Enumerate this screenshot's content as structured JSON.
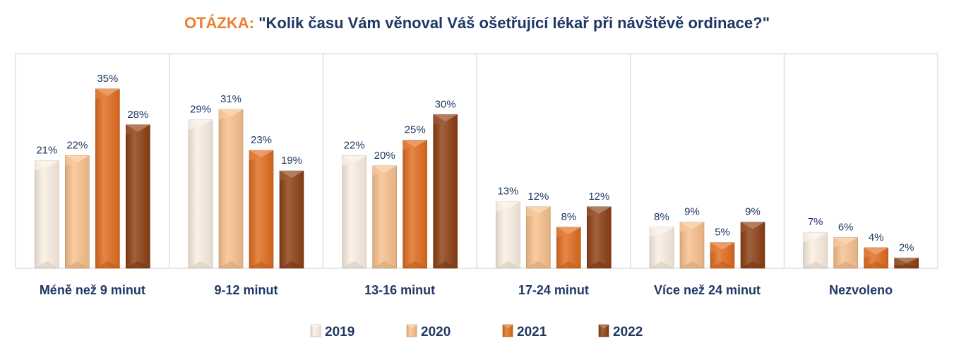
{
  "title": {
    "prefix": "OTÁZKA:",
    "text": "\"Kolik času Vám věnoval Váš ošetřující lékař při návštěvě ordinace?\""
  },
  "chart_data": {
    "type": "bar",
    "categories": [
      "Méně než 9 minut",
      "9-12 minut",
      "13-16 minut",
      "17-24 minut",
      "Více než 24 minut",
      "Nezvoleno"
    ],
    "series": [
      {
        "name": "2019",
        "values": [
          21,
          29,
          22,
          13,
          8,
          7
        ],
        "labels": [
          "21%",
          "29%",
          "22%",
          "13%",
          "8%",
          "7%"
        ],
        "color": "#fbeee2"
      },
      {
        "name": "2020",
        "values": [
          22,
          31,
          20,
          12,
          9,
          6
        ],
        "labels": [
          "22%",
          "31%",
          "20%",
          "12%",
          "9%",
          "6%"
        ],
        "color": "#f8c08c"
      },
      {
        "name": "2021",
        "values": [
          35,
          23,
          25,
          8,
          5,
          4
        ],
        "labels": [
          "35%",
          "23%",
          "25%",
          "8%",
          "5%",
          "4%"
        ],
        "color": "#e06b1d"
      },
      {
        "name": "2022",
        "values": [
          28,
          19,
          30,
          12,
          9,
          2
        ],
        "labels": [
          "28%",
          "19%",
          "30%",
          "12%",
          "9%",
          "2%"
        ],
        "color": "#8c3e12"
      }
    ],
    "ylim": [
      0,
      40
    ],
    "grid": false,
    "legend": "bottom",
    "colors": {
      "label": "#1f3864",
      "divider": "#d0d0d0"
    }
  }
}
